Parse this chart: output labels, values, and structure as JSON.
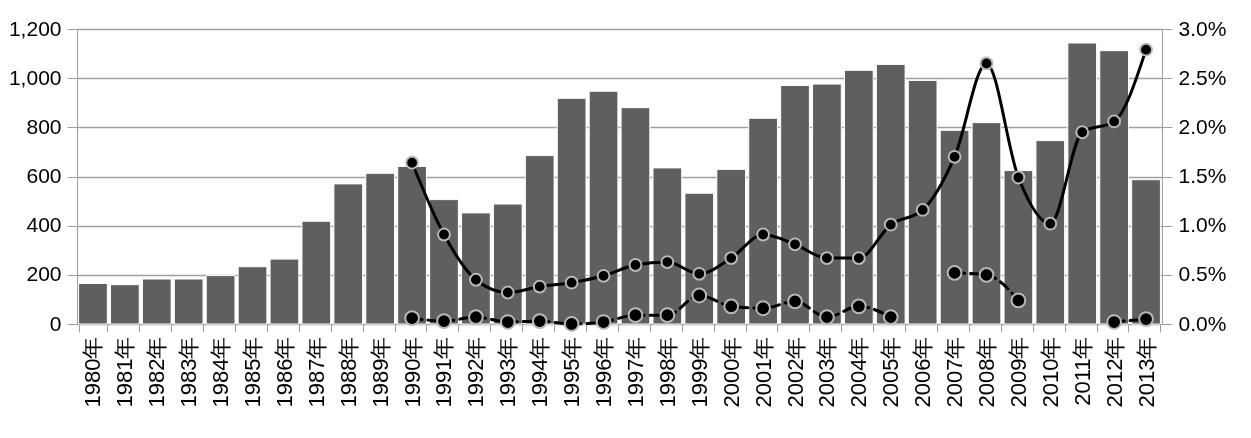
{
  "chart_data": {
    "type": "bar",
    "categories": [
      "1980年",
      "1981年",
      "1982年",
      "1983年",
      "1984年",
      "1985年",
      "1986年",
      "1987年",
      "1988年",
      "1989年",
      "1990年",
      "1991年",
      "1992年",
      "1993年",
      "1994年",
      "1995年",
      "1996年",
      "1997年",
      "1998年",
      "1999年",
      "2000年",
      "2001年",
      "2002年",
      "2003年",
      "2004年",
      "2005年",
      "2006年",
      "2007年",
      "2008年",
      "2009年",
      "2010年",
      "2011年",
      "2012年",
      "2013年"
    ],
    "series": [
      {
        "color": "#5f5f5f",
        "values": [
          165,
          160,
          183,
          183,
          197,
          233,
          264,
          418,
          570,
          613,
          641,
          506,
          452,
          488,
          685,
          918,
          947,
          880,
          635,
          532,
          629,
          837,
          970,
          976,
          1032,
          1056,
          991,
          788,
          819,
          624,
          746,
          1143,
          1112,
          587
        ]
      },
      {
        "type": "line",
        "axis": "y2",
        "color": "#000000",
        "line_style": "solid",
        "marker": "circle",
        "values": [
          null,
          null,
          null,
          null,
          null,
          null,
          null,
          null,
          null,
          null,
          1.64,
          0.91,
          0.45,
          0.32,
          0.38,
          0.42,
          0.49,
          0.6,
          0.63,
          0.51,
          0.67,
          0.91,
          0.81,
          0.67,
          0.67,
          1.01,
          1.16,
          1.7,
          2.65,
          1.49,
          1.02,
          1.95,
          2.06,
          2.79
        ]
      },
      {
        "type": "line",
        "axis": "y2",
        "color": "#000000",
        "line_style": "dashed",
        "marker": "circle",
        "values": [
          null,
          null,
          null,
          null,
          null,
          null,
          null,
          null,
          null,
          null,
          0.06,
          0.03,
          0.07,
          0.02,
          0.03,
          0.0,
          0.02,
          0.09,
          0.09,
          0.29,
          0.18,
          0.16,
          0.23,
          0.07,
          0.18,
          0.07,
          null,
          0.52,
          0.5,
          0.24,
          null,
          null,
          0.02,
          0.05
        ]
      }
    ],
    "ylim": [
      0,
      1200
    ],
    "yticks": [
      0,
      200,
      400,
      600,
      800,
      {
        "value": 1000,
        "label": "1,000"
      },
      {
        "value": 1200,
        "label": "1,200"
      }
    ],
    "y2lim": [
      0,
      3
    ],
    "y2ticks": [
      {
        "value": 0,
        "label": "0.0%"
      },
      {
        "value": 0.5,
        "label": "0.5%"
      },
      {
        "value": 1,
        "label": "1.0%"
      },
      {
        "value": 1.5,
        "label": "1.5%"
      },
      {
        "value": 2,
        "label": "2.0%"
      },
      {
        "value": 2.5,
        "label": "2.5%"
      },
      {
        "value": 3,
        "label": "3.0%"
      }
    ],
    "grid": "y"
  }
}
